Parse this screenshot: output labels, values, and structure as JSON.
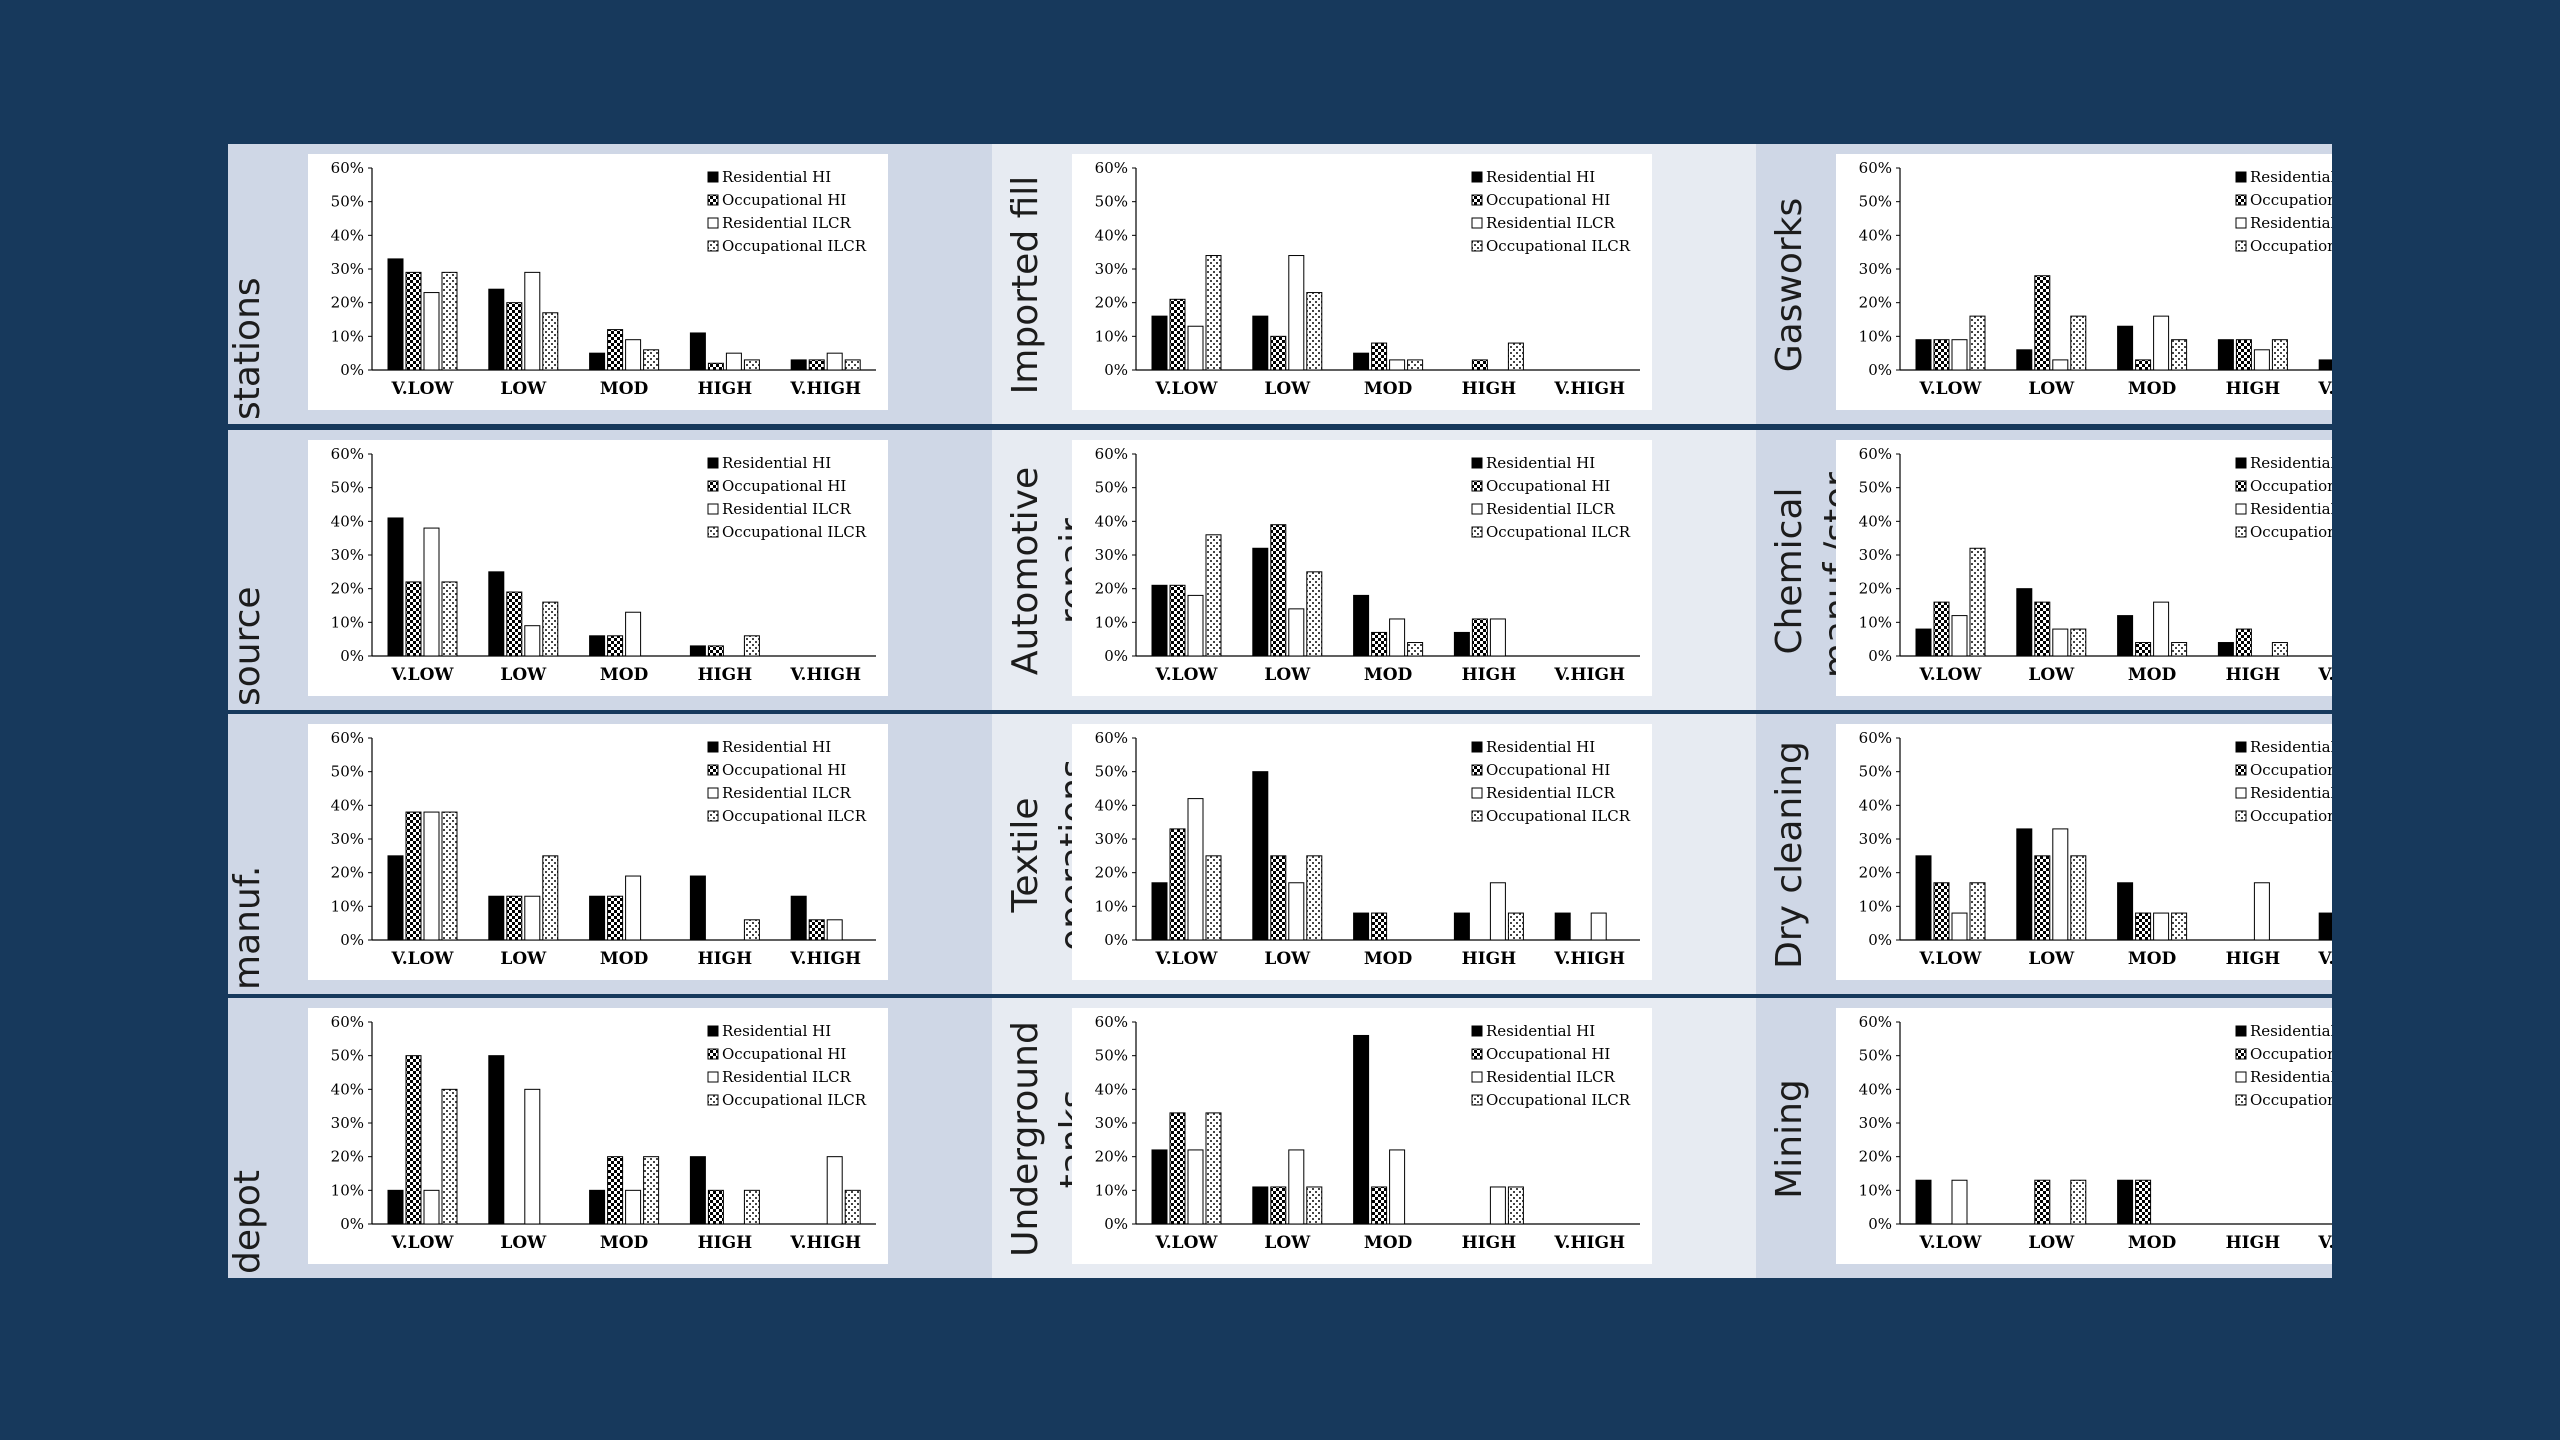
{
  "colors": {
    "background": "#17395c",
    "band_a": "#cfd7e6",
    "band_b": "#e7ebf2",
    "chart_bg": "#ffffff",
    "bar_edge": "#000000"
  },
  "legend_labels": [
    "Residential HI",
    "Occupational HI",
    "Residential ILCR",
    "Occupational ILCR"
  ],
  "chart_data": [
    {
      "type": "bar",
      "title": "stations",
      "ylim": [
        0,
        60
      ],
      "categories": [
        "V.LOW",
        "LOW",
        "MOD",
        "HIGH",
        "V.HIGH"
      ],
      "yticks": [
        "0%",
        "10%",
        "20%",
        "30%",
        "40%",
        "50%",
        "60%"
      ],
      "series": [
        {
          "name": "Residential HI",
          "values": [
            33,
            24,
            5,
            11,
            3
          ]
        },
        {
          "name": "Occupational HI",
          "values": [
            29,
            20,
            12,
            2,
            3
          ]
        },
        {
          "name": "Residential ILCR",
          "values": [
            23,
            29,
            9,
            5,
            5
          ]
        },
        {
          "name": "Occupational ILCR",
          "values": [
            29,
            17,
            6,
            3,
            3
          ]
        }
      ]
    },
    {
      "type": "bar",
      "title": "Imported fill",
      "ylim": [
        0,
        60
      ],
      "categories": [
        "V.LOW",
        "LOW",
        "MOD",
        "HIGH",
        "V.HIGH"
      ],
      "yticks": [
        "0%",
        "10%",
        "20%",
        "30%",
        "40%",
        "50%",
        "60%"
      ],
      "series": [
        {
          "name": "Residential HI",
          "values": [
            16,
            16,
            5,
            0,
            0
          ]
        },
        {
          "name": "Occupational HI",
          "values": [
            21,
            10,
            8,
            3,
            0
          ]
        },
        {
          "name": "Residential ILCR",
          "values": [
            13,
            34,
            3,
            0,
            0
          ]
        },
        {
          "name": "Occupational ILCR",
          "values": [
            34,
            23,
            3,
            8,
            0
          ]
        }
      ]
    },
    {
      "type": "bar",
      "title": "Gasworks",
      "ylim": [
        0,
        60
      ],
      "categories": [
        "V.LOW",
        "LOW",
        "MOD",
        "HIGH",
        "V.HIGH"
      ],
      "yticks": [
        "0%",
        "10%",
        "20%",
        "30%",
        "40%",
        "50%",
        "60%"
      ],
      "series": [
        {
          "name": "Residential HI",
          "values": [
            9,
            6,
            13,
            9,
            3
          ]
        },
        {
          "name": "Occupational HI",
          "values": [
            9,
            28,
            3,
            9,
            0
          ]
        },
        {
          "name": "Residential ILCR",
          "values": [
            9,
            3,
            16,
            6,
            0
          ]
        },
        {
          "name": "Occupational ILCR",
          "values": [
            16,
            16,
            9,
            9,
            0
          ]
        }
      ]
    },
    {
      "type": "bar",
      "title": "source",
      "ylim": [
        0,
        60
      ],
      "categories": [
        "V.LOW",
        "LOW",
        "MOD",
        "HIGH",
        "V.HIGH"
      ],
      "yticks": [
        "0%",
        "10%",
        "20%",
        "30%",
        "40%",
        "50%",
        "60%"
      ],
      "series": [
        {
          "name": "Residential HI",
          "values": [
            41,
            25,
            6,
            3,
            0
          ]
        },
        {
          "name": "Occupational HI",
          "values": [
            22,
            19,
            6,
            3,
            0
          ]
        },
        {
          "name": "Residential ILCR",
          "values": [
            38,
            9,
            13,
            0,
            0
          ]
        },
        {
          "name": "Occupational ILCR",
          "values": [
            22,
            16,
            0,
            6,
            0
          ]
        }
      ]
    },
    {
      "type": "bar",
      "title": "Automotive repair",
      "ylim": [
        0,
        60
      ],
      "categories": [
        "V.LOW",
        "LOW",
        "MOD",
        "HIGH",
        "V.HIGH"
      ],
      "yticks": [
        "0%",
        "10%",
        "20%",
        "30%",
        "40%",
        "50%",
        "60%"
      ],
      "series": [
        {
          "name": "Residential HI",
          "values": [
            21,
            32,
            18,
            7,
            0
          ]
        },
        {
          "name": "Occupational HI",
          "values": [
            21,
            39,
            7,
            11,
            0
          ]
        },
        {
          "name": "Residential ILCR",
          "values": [
            18,
            14,
            11,
            11,
            0
          ]
        },
        {
          "name": "Occupational ILCR",
          "values": [
            36,
            25,
            4,
            0,
            0
          ]
        }
      ]
    },
    {
      "type": "bar",
      "title": "Chemical manuf./stor.",
      "ylim": [
        0,
        60
      ],
      "categories": [
        "V.LOW",
        "LOW",
        "MOD",
        "HIGH",
        "V.HIGH"
      ],
      "yticks": [
        "0%",
        "10%",
        "20%",
        "30%",
        "40%",
        "50%",
        "60%"
      ],
      "series": [
        {
          "name": "Residential HI",
          "values": [
            8,
            20,
            12,
            4,
            0
          ]
        },
        {
          "name": "Occupational HI",
          "values": [
            16,
            16,
            4,
            8,
            0
          ]
        },
        {
          "name": "Residential ILCR",
          "values": [
            12,
            8,
            16,
            0,
            0
          ]
        },
        {
          "name": "Occupational ILCR",
          "values": [
            32,
            8,
            4,
            4,
            0
          ]
        }
      ]
    },
    {
      "type": "bar",
      "title": "manuf.",
      "ylim": [
        0,
        60
      ],
      "categories": [
        "V.LOW",
        "LOW",
        "MOD",
        "HIGH",
        "V.HIGH"
      ],
      "yticks": [
        "0%",
        "10%",
        "20%",
        "30%",
        "40%",
        "50%",
        "60%"
      ],
      "series": [
        {
          "name": "Residential HI",
          "values": [
            25,
            13,
            13,
            19,
            13
          ]
        },
        {
          "name": "Occupational HI",
          "values": [
            38,
            13,
            13,
            0,
            6
          ]
        },
        {
          "name": "Residential ILCR",
          "values": [
            38,
            13,
            19,
            0,
            6
          ]
        },
        {
          "name": "Occupational ILCR",
          "values": [
            38,
            25,
            0,
            6,
            0
          ]
        }
      ]
    },
    {
      "type": "bar",
      "title": "Textile operations",
      "ylim": [
        0,
        60
      ],
      "categories": [
        "V.LOW",
        "LOW",
        "MOD",
        "HIGH",
        "V.HIGH"
      ],
      "yticks": [
        "0%",
        "10%",
        "20%",
        "30%",
        "40%",
        "50%",
        "60%"
      ],
      "series": [
        {
          "name": "Residential HI",
          "values": [
            17,
            50,
            8,
            8,
            8
          ]
        },
        {
          "name": "Occupational HI",
          "values": [
            33,
            25,
            8,
            0,
            0
          ]
        },
        {
          "name": "Residential ILCR",
          "values": [
            42,
            17,
            0,
            17,
            8
          ]
        },
        {
          "name": "Occupational ILCR",
          "values": [
            25,
            25,
            0,
            8,
            0
          ]
        }
      ]
    },
    {
      "type": "bar",
      "title": "Dry cleaning",
      "ylim": [
        0,
        60
      ],
      "categories": [
        "V.LOW",
        "LOW",
        "MOD",
        "HIGH",
        "V.HIGH"
      ],
      "yticks": [
        "0%",
        "10%",
        "20%",
        "30%",
        "40%",
        "50%",
        "60%"
      ],
      "series": [
        {
          "name": "Residential HI",
          "values": [
            25,
            33,
            17,
            0,
            8
          ]
        },
        {
          "name": "Occupational HI",
          "values": [
            17,
            25,
            8,
            0,
            0
          ]
        },
        {
          "name": "Residential ILCR",
          "values": [
            8,
            33,
            8,
            17,
            0
          ]
        },
        {
          "name": "Occupational ILCR",
          "values": [
            17,
            25,
            8,
            0,
            0
          ]
        }
      ]
    },
    {
      "type": "bar",
      "title": "depot",
      "ylim": [
        0,
        60
      ],
      "categories": [
        "V.LOW",
        "LOW",
        "MOD",
        "HIGH",
        "V.HIGH"
      ],
      "yticks": [
        "0%",
        "10%",
        "20%",
        "30%",
        "40%",
        "50%",
        "60%"
      ],
      "series": [
        {
          "name": "Residential HI",
          "values": [
            10,
            50,
            10,
            20,
            0
          ]
        },
        {
          "name": "Occupational HI",
          "values": [
            50,
            0,
            20,
            10,
            0
          ]
        },
        {
          "name": "Residential ILCR",
          "values": [
            10,
            40,
            10,
            0,
            20
          ]
        },
        {
          "name": "Occupational ILCR",
          "values": [
            40,
            0,
            20,
            10,
            10
          ]
        }
      ]
    },
    {
      "type": "bar",
      "title": "Underground tanks",
      "ylim": [
        0,
        60
      ],
      "categories": [
        "V.LOW",
        "LOW",
        "MOD",
        "HIGH",
        "V.HIGH"
      ],
      "yticks": [
        "0%",
        "10%",
        "20%",
        "30%",
        "40%",
        "50%",
        "60%"
      ],
      "series": [
        {
          "name": "Residential HI",
          "values": [
            22,
            11,
            56,
            0,
            0
          ]
        },
        {
          "name": "Occupational HI",
          "values": [
            33,
            11,
            11,
            0,
            0
          ]
        },
        {
          "name": "Residential ILCR",
          "values": [
            22,
            22,
            22,
            11,
            0
          ]
        },
        {
          "name": "Occupational ILCR",
          "values": [
            33,
            11,
            0,
            11,
            0
          ]
        }
      ]
    },
    {
      "type": "bar",
      "title": "Mining",
      "ylim": [
        0,
        60
      ],
      "categories": [
        "V.LOW",
        "LOW",
        "MOD",
        "HIGH",
        "V.HIGH"
      ],
      "yticks": [
        "0%",
        "10%",
        "20%",
        "30%",
        "40%",
        "50%",
        "60%"
      ],
      "series": [
        {
          "name": "Residential HI",
          "values": [
            13,
            0,
            13,
            0,
            0
          ]
        },
        {
          "name": "Occupational HI",
          "values": [
            0,
            13,
            13,
            0,
            0
          ]
        },
        {
          "name": "Residential ILCR",
          "values": [
            13,
            0,
            0,
            0,
            0
          ]
        },
        {
          "name": "Occupational ILCR",
          "values": [
            0,
            13,
            0,
            0,
            0
          ]
        }
      ]
    }
  ]
}
